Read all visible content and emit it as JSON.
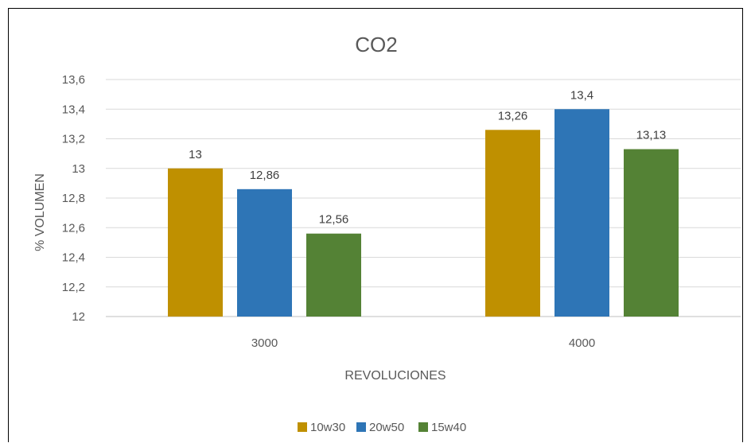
{
  "chart_data": {
    "type": "bar",
    "title": "CO2",
    "xlabel": "REVOLUCIONES",
    "ylabel": "% VOLUMEN",
    "categories": [
      "3000",
      "4000"
    ],
    "series": [
      {
        "name": "10w30",
        "color": "#bf9000",
        "values": [
          13,
          13.26
        ],
        "labels": [
          "13",
          "13,26"
        ]
      },
      {
        "name": "20w50",
        "color": "#2e75b6",
        "values": [
          12.86,
          13.4
        ],
        "labels": [
          "12,86",
          "13,4"
        ]
      },
      {
        "name": "15w40",
        "color": "#548235",
        "values": [
          12.56,
          13.13
        ],
        "labels": [
          "12,56",
          "13,13"
        ]
      }
    ],
    "ylim": [
      12,
      13.6
    ],
    "yticks": [
      12,
      12.2,
      12.4,
      12.6,
      12.8,
      13,
      13.2,
      13.4,
      13.6
    ],
    "ytick_labels": [
      "12",
      "12,2",
      "12,4",
      "12,6",
      "12,8",
      "13",
      "13,2",
      "13,4",
      "13,6"
    ],
    "grid": true,
    "legend_position": "bottom"
  }
}
